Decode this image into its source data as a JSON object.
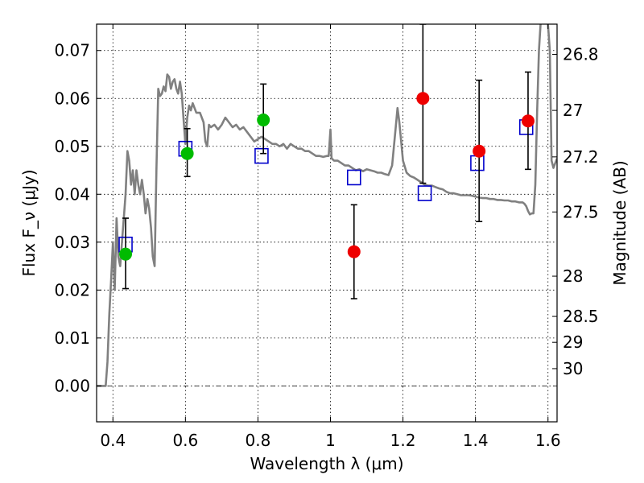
{
  "chart_data": {
    "type": "scatter",
    "title": "",
    "xlabel": "Wavelength λ (μm)",
    "ylabel": "Flux F_ν (μJy)",
    "ylabel_right": "Magnitude (AB)",
    "xlim": [
      0.355,
      1.625
    ],
    "ylim": [
      -0.0075,
      0.0755
    ],
    "grid": true,
    "x_ticks": [
      0.4,
      0.6,
      0.8,
      1.0,
      1.2,
      1.4,
      1.6
    ],
    "x_tick_labels": [
      "0.4",
      "0.6",
      "0.8",
      "1",
      "1.2",
      "1.4",
      "1.6"
    ],
    "y_ticks": [
      0.0,
      0.01,
      0.02,
      0.03,
      0.04,
      0.05,
      0.06,
      0.07
    ],
    "y_tick_labels": [
      "0.00",
      "0.01",
      "0.02",
      "0.03",
      "0.04",
      "0.05",
      "0.06",
      "0.07"
    ],
    "right_ticks": [
      {
        "flux": 0.0692,
        "label": "26.8"
      },
      {
        "flux": 0.0575,
        "label": "27"
      },
      {
        "flux": 0.0478,
        "label": "27.2"
      },
      {
        "flux": 0.0363,
        "label": "27.5"
      },
      {
        "flux": 0.0229,
        "label": "28"
      },
      {
        "flux": 0.0145,
        "label": "28.5"
      },
      {
        "flux": 0.0091,
        "label": "29"
      },
      {
        "flux": 0.0036,
        "label": "30"
      }
    ],
    "series": [
      {
        "kind": "line",
        "color": "#808080",
        "points": [
          [
            0.355,
            0.0
          ],
          [
            0.37,
            0.0
          ],
          [
            0.38,
            0.0
          ],
          [
            0.385,
            0.005
          ],
          [
            0.39,
            0.015
          ],
          [
            0.395,
            0.022
          ],
          [
            0.4,
            0.03
          ],
          [
            0.405,
            0.02
          ],
          [
            0.41,
            0.035
          ],
          [
            0.415,
            0.027
          ],
          [
            0.42,
            0.025
          ],
          [
            0.425,
            0.03
          ],
          [
            0.43,
            0.035
          ],
          [
            0.435,
            0.04
          ],
          [
            0.44,
            0.049
          ],
          [
            0.445,
            0.047
          ],
          [
            0.45,
            0.042
          ],
          [
            0.455,
            0.045
          ],
          [
            0.46,
            0.04
          ],
          [
            0.465,
            0.045
          ],
          [
            0.47,
            0.042
          ],
          [
            0.475,
            0.04
          ],
          [
            0.48,
            0.043
          ],
          [
            0.485,
            0.04
          ],
          [
            0.49,
            0.036
          ],
          [
            0.495,
            0.039
          ],
          [
            0.5,
            0.037
          ],
          [
            0.505,
            0.033
          ],
          [
            0.51,
            0.027
          ],
          [
            0.515,
            0.025
          ],
          [
            0.52,
            0.045
          ],
          [
            0.525,
            0.062
          ],
          [
            0.53,
            0.0605
          ],
          [
            0.535,
            0.061
          ],
          [
            0.54,
            0.0625
          ],
          [
            0.545,
            0.0615
          ],
          [
            0.55,
            0.065
          ],
          [
            0.555,
            0.0645
          ],
          [
            0.56,
            0.062
          ],
          [
            0.565,
            0.0635
          ],
          [
            0.57,
            0.064
          ],
          [
            0.575,
            0.062
          ],
          [
            0.58,
            0.061
          ],
          [
            0.585,
            0.0635
          ],
          [
            0.59,
            0.061
          ],
          [
            0.595,
            0.0555
          ],
          [
            0.6,
            0.0505
          ],
          [
            0.605,
            0.056
          ],
          [
            0.61,
            0.0585
          ],
          [
            0.615,
            0.0575
          ],
          [
            0.62,
            0.059
          ],
          [
            0.63,
            0.057
          ],
          [
            0.64,
            0.057
          ],
          [
            0.65,
            0.055
          ],
          [
            0.655,
            0.051
          ],
          [
            0.66,
            0.05
          ],
          [
            0.665,
            0.0545
          ],
          [
            0.67,
            0.054
          ],
          [
            0.68,
            0.0545
          ],
          [
            0.69,
            0.0535
          ],
          [
            0.7,
            0.0545
          ],
          [
            0.71,
            0.056
          ],
          [
            0.72,
            0.055
          ],
          [
            0.73,
            0.054
          ],
          [
            0.74,
            0.0545
          ],
          [
            0.75,
            0.0535
          ],
          [
            0.76,
            0.054
          ],
          [
            0.77,
            0.053
          ],
          [
            0.78,
            0.052
          ],
          [
            0.79,
            0.051
          ],
          [
            0.8,
            0.0515
          ],
          [
            0.81,
            0.052
          ],
          [
            0.82,
            0.0515
          ],
          [
            0.83,
            0.051
          ],
          [
            0.84,
            0.0505
          ],
          [
            0.85,
            0.0505
          ],
          [
            0.86,
            0.05
          ],
          [
            0.87,
            0.0505
          ],
          [
            0.88,
            0.0495
          ],
          [
            0.89,
            0.0505
          ],
          [
            0.9,
            0.05
          ],
          [
            0.91,
            0.0495
          ],
          [
            0.92,
            0.0495
          ],
          [
            0.93,
            0.049
          ],
          [
            0.94,
            0.049
          ],
          [
            0.95,
            0.0485
          ],
          [
            0.96,
            0.048
          ],
          [
            0.97,
            0.048
          ],
          [
            0.98,
            0.0478
          ],
          [
            0.99,
            0.048
          ],
          [
            0.995,
            0.048
          ],
          [
            1.0,
            0.0535
          ],
          [
            1.003,
            0.0475
          ],
          [
            1.01,
            0.047
          ],
          [
            1.02,
            0.047
          ],
          [
            1.03,
            0.0465
          ],
          [
            1.04,
            0.046
          ],
          [
            1.05,
            0.046
          ],
          [
            1.06,
            0.0455
          ],
          [
            1.07,
            0.045
          ],
          [
            1.08,
            0.0452
          ],
          [
            1.09,
            0.0448
          ],
          [
            1.1,
            0.0452
          ],
          [
            1.11,
            0.045
          ],
          [
            1.12,
            0.0448
          ],
          [
            1.13,
            0.0445
          ],
          [
            1.14,
            0.0445
          ],
          [
            1.15,
            0.0442
          ],
          [
            1.16,
            0.044
          ],
          [
            1.17,
            0.046
          ],
          [
            1.18,
            0.054
          ],
          [
            1.185,
            0.058
          ],
          [
            1.19,
            0.055
          ],
          [
            1.2,
            0.047
          ],
          [
            1.21,
            0.0445
          ],
          [
            1.22,
            0.0438
          ],
          [
            1.23,
            0.0435
          ],
          [
            1.24,
            0.043
          ],
          [
            1.25,
            0.0425
          ],
          [
            1.26,
            0.042
          ],
          [
            1.27,
            0.0418
          ],
          [
            1.28,
            0.0418
          ],
          [
            1.29,
            0.0415
          ],
          [
            1.3,
            0.0412
          ],
          [
            1.31,
            0.041
          ],
          [
            1.32,
            0.0405
          ],
          [
            1.33,
            0.0402
          ],
          [
            1.34,
            0.0402
          ],
          [
            1.35,
            0.04
          ],
          [
            1.36,
            0.0398
          ],
          [
            1.37,
            0.0398
          ],
          [
            1.38,
            0.0398
          ],
          [
            1.39,
            0.0397
          ],
          [
            1.4,
            0.0395
          ],
          [
            1.41,
            0.0393
          ],
          [
            1.42,
            0.0392
          ],
          [
            1.43,
            0.0392
          ],
          [
            1.44,
            0.039
          ],
          [
            1.45,
            0.039
          ],
          [
            1.46,
            0.0388
          ],
          [
            1.47,
            0.0388
          ],
          [
            1.48,
            0.0387
          ],
          [
            1.49,
            0.0387
          ],
          [
            1.5,
            0.0385
          ],
          [
            1.51,
            0.0385
          ],
          [
            1.52,
            0.0383
          ],
          [
            1.53,
            0.0383
          ],
          [
            1.535,
            0.038
          ],
          [
            1.54,
            0.0375
          ],
          [
            1.545,
            0.0365
          ],
          [
            1.55,
            0.0358
          ],
          [
            1.555,
            0.036
          ],
          [
            1.56,
            0.036
          ],
          [
            1.565,
            0.042
          ],
          [
            1.57,
            0.057
          ],
          [
            1.575,
            0.07
          ],
          [
            1.58,
            0.076
          ],
          [
            1.59,
            0.076
          ],
          [
            1.6,
            0.0755
          ],
          [
            1.605,
            0.07
          ],
          [
            1.61,
            0.047
          ],
          [
            1.615,
            0.0455
          ],
          [
            1.625,
            0.0475
          ]
        ]
      },
      {
        "kind": "squares",
        "color": "#0000cc",
        "points": [
          [
            0.435,
            0.0295
          ],
          [
            0.6,
            0.0495
          ],
          [
            0.81,
            0.048
          ],
          [
            1.065,
            0.0435
          ],
          [
            1.26,
            0.0402
          ],
          [
            1.405,
            0.0465
          ],
          [
            1.54,
            0.054
          ]
        ]
      },
      {
        "kind": "circles",
        "color": "#00bb00",
        "points": [
          {
            "x": 0.435,
            "y": 0.0275,
            "err_low": 0.0203,
            "err_high": 0.035
          },
          {
            "x": 0.605,
            "y": 0.0485,
            "err_low": 0.0437,
            "err_high": 0.0537
          },
          {
            "x": 0.815,
            "y": 0.0555,
            "err_low": 0.0485,
            "err_high": 0.063
          }
        ]
      },
      {
        "kind": "circles",
        "color": "#ee0000",
        "points": [
          {
            "x": 1.065,
            "y": 0.028,
            "err_low": 0.0182,
            "err_high": 0.0378
          },
          {
            "x": 1.255,
            "y": 0.06,
            "err_low": 0.0423,
            "err_high": 0.0755
          },
          {
            "x": 1.41,
            "y": 0.049,
            "err_low": 0.0343,
            "err_high": 0.0638
          },
          {
            "x": 1.545,
            "y": 0.0553,
            "err_low": 0.0452,
            "err_high": 0.0655
          }
        ]
      }
    ]
  }
}
